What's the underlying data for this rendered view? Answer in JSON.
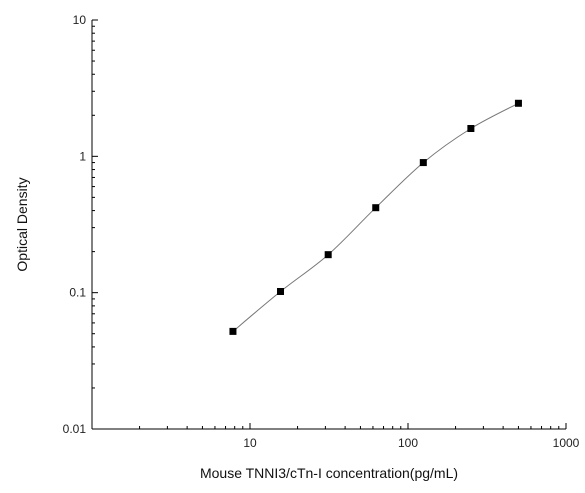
{
  "chart_data": {
    "type": "scatter",
    "title": "",
    "xlabel": "Mouse TNNI3/cTn-I concentration(pg/mL)",
    "ylabel": "Optical Density",
    "xscale": "log",
    "yscale": "log",
    "xlim": [
      1,
      1000
    ],
    "ylim": [
      0.01,
      10
    ],
    "x_ticks": [
      10,
      100,
      1000
    ],
    "x_tick_labels": [
      "10",
      "100",
      "1000"
    ],
    "y_ticks": [
      0.01,
      0.1,
      1,
      10
    ],
    "y_tick_labels": [
      "0.01",
      "0.1",
      "1",
      "10"
    ],
    "grid": false,
    "legend": "none",
    "series": [
      {
        "marker": "square",
        "fit_curve": true,
        "x": [
          7.8,
          15.6,
          31.25,
          62.5,
          125,
          250,
          500
        ],
        "y": [
          0.052,
          0.102,
          0.19,
          0.42,
          0.9,
          1.6,
          2.45
        ]
      }
    ],
    "colors": {
      "marker": "#000000",
      "curve": "#777777",
      "axis": "#000000"
    }
  }
}
